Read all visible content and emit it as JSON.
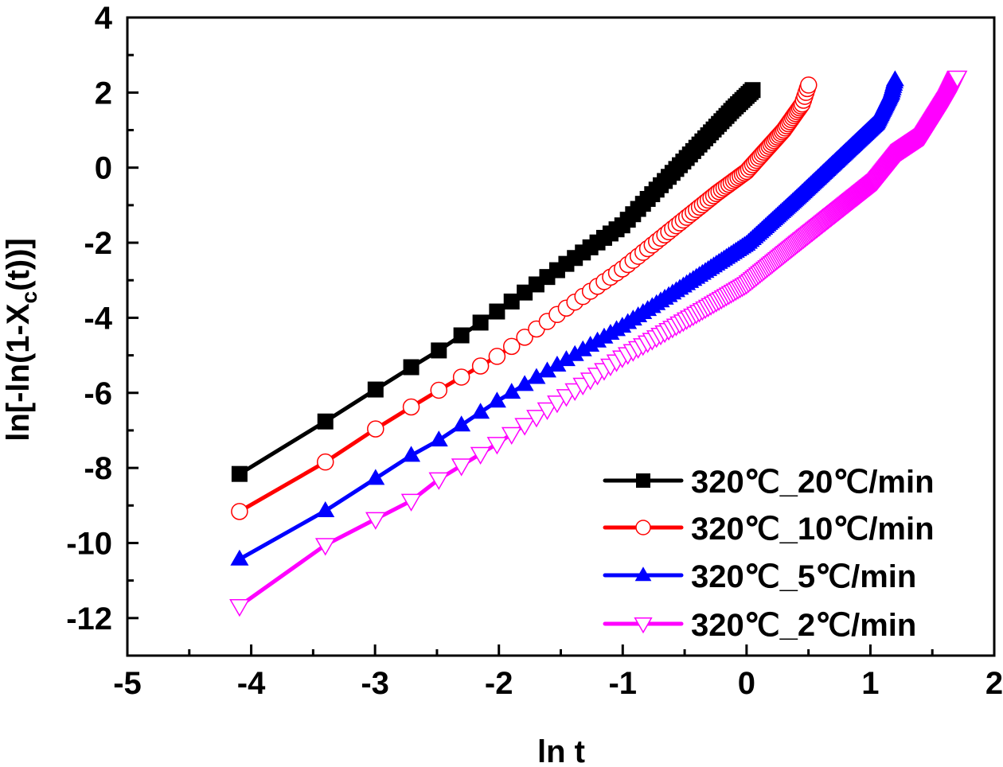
{
  "chart_data": {
    "type": "line",
    "title": "",
    "xlabel": "ln t",
    "ylabel_parts": {
      "main": "ln[-ln(1-X",
      "sub": "c",
      "tail": "(t))]"
    },
    "xlim": [
      -5,
      2
    ],
    "ylim": [
      -13,
      4
    ],
    "x_ticks": [
      -5,
      -4,
      -3,
      -2,
      -1,
      0,
      1,
      2
    ],
    "x_tick_labels": [
      "-5",
      "-4",
      "-3",
      "-2",
      "-1",
      "0",
      "1",
      "2"
    ],
    "y_ticks": [
      4,
      2,
      0,
      -2,
      -4,
      -6,
      -8,
      -10,
      -12
    ],
    "y_tick_labels": [
      "4",
      "2",
      "0",
      "-2",
      "-4",
      "-6",
      "-8",
      "-10",
      "-12"
    ],
    "grid": false,
    "legend_position": "bottom-right",
    "sample_rule": "ln t at t = k/60, k = 1..n_points",
    "series": [
      {
        "name": "320℃_20℃/min",
        "color": "#000000",
        "marker": "square-filled",
        "n_points": 63,
        "points": [
          [
            -4.09,
            -8.16
          ],
          [
            -3.4,
            -6.76
          ],
          [
            -3.0,
            -5.92
          ],
          [
            -2.71,
            -5.32
          ],
          [
            -2.48,
            -4.86
          ],
          [
            -2.0,
            -3.8
          ],
          [
            -1.0,
            -1.53
          ],
          [
            -0.5,
            0.2
          ],
          [
            -0.11,
            1.56
          ],
          [
            0.05,
            2.07
          ]
        ]
      },
      {
        "name": "320℃_10℃/min",
        "color": "#ff0000",
        "marker": "circle-open",
        "n_points": 99,
        "points": [
          [
            -4.09,
            -9.16
          ],
          [
            -3.4,
            -7.84
          ],
          [
            -3.0,
            -6.97
          ],
          [
            -2.71,
            -6.38
          ],
          [
            -2.48,
            -5.92
          ],
          [
            -2.0,
            -5.0
          ],
          [
            -1.0,
            -2.69
          ],
          [
            -0.24,
            -0.68
          ],
          [
            0.0,
            -0.1
          ],
          [
            0.3,
            1.0
          ],
          [
            0.45,
            1.7
          ],
          [
            0.5,
            2.2
          ]
        ]
      },
      {
        "name": "320℃_5℃/min",
        "color": "#0000ff",
        "marker": "triangle-up-filled",
        "n_points": 199,
        "points": [
          [
            -4.09,
            -10.43
          ],
          [
            -3.4,
            -9.14
          ],
          [
            -3.0,
            -8.29
          ],
          [
            -2.71,
            -7.67
          ],
          [
            -2.48,
            -7.25
          ],
          [
            -2.0,
            -6.19
          ],
          [
            -1.0,
            -4.22
          ],
          [
            0.0,
            -2.04
          ],
          [
            0.4,
            -0.83
          ],
          [
            1.05,
            1.2
          ],
          [
            1.17,
            2.0
          ],
          [
            1.2,
            2.35
          ]
        ]
      },
      {
        "name": "320℃_2℃/min",
        "color": "#ff00ff",
        "marker": "triangle-down-open",
        "n_points": 329,
        "points": [
          [
            -4.09,
            -11.68
          ],
          [
            -3.4,
            -10.05
          ],
          [
            -3.0,
            -9.37
          ],
          [
            -2.71,
            -8.88
          ],
          [
            -2.48,
            -8.29
          ],
          [
            -2.0,
            -7.33
          ],
          [
            -1.0,
            -5.05
          ],
          [
            0.0,
            -3.1
          ],
          [
            0.4,
            -2.04
          ],
          [
            1.05,
            -0.34
          ],
          [
            1.24,
            0.44
          ],
          [
            1.43,
            0.86
          ],
          [
            1.62,
            1.86
          ],
          [
            1.7,
            2.4
          ]
        ]
      }
    ]
  }
}
